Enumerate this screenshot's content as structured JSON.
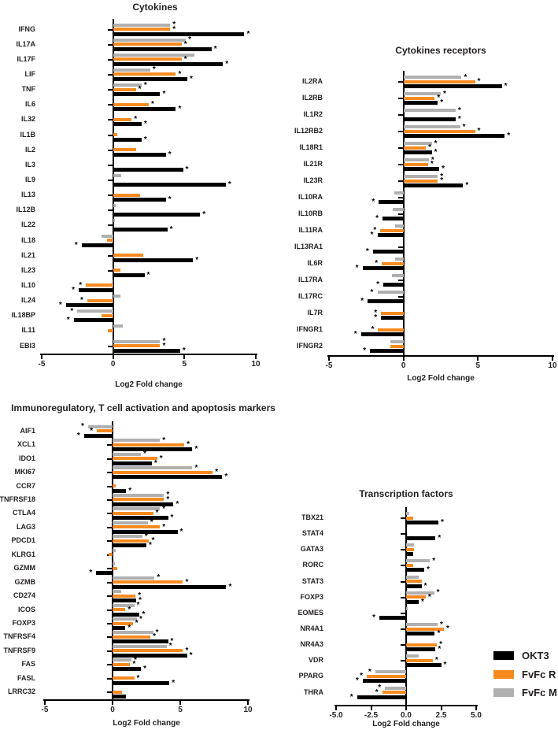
{
  "figure": {
    "background": "#ffffff",
    "significance_marker": "*",
    "legend": {
      "items": [
        {
          "label": "OKT3",
          "color": "#000000"
        },
        {
          "label": "FvFc R",
          "color": "#F68A1E"
        },
        {
          "label": "FvFc M",
          "color": "#B0B0B0"
        }
      ]
    }
  },
  "chart_data": [
    {
      "type": "bar",
      "orientation": "horizontal",
      "title": "Cytokines",
      "xlabel": "Log2 Fold change",
      "xlim": [
        -5,
        10
      ],
      "xticks": [
        "-5",
        "0",
        "5",
        "10"
      ],
      "xtick_values": [
        -5,
        0,
        5,
        10
      ],
      "grid": false,
      "categories": [
        "IFNG",
        "IL17A",
        "IL17F",
        "LIF",
        "TNF",
        "IL6",
        "IL32",
        "IL1B",
        "IL2",
        "IL3",
        "IL9",
        "IL13",
        "IL12B",
        "IL22",
        "IL18",
        "IL21",
        "IL23",
        "IL10",
        "IL24",
        "IL18BP",
        "IL11",
        "EBI3"
      ],
      "series": [
        {
          "name": "FvFc M",
          "color": "#B0B0B0",
          "values": [
            4.0,
            5.1,
            5.7,
            2.6,
            2.0,
            null,
            null,
            null,
            null,
            null,
            0.55,
            null,
            0.2,
            0.15,
            -0.8,
            null,
            null,
            -0.1,
            0.5,
            -2.5,
            0.7,
            3.3
          ],
          "stars": [
            1,
            1,
            0,
            1,
            1,
            0,
            0,
            0,
            0,
            0,
            0,
            0,
            0,
            0,
            0,
            0,
            0,
            0,
            0,
            1,
            0,
            1
          ]
        },
        {
          "name": "FvFc R",
          "color": "#F68A1E",
          "values": [
            4.0,
            4.8,
            4.8,
            4.4,
            1.6,
            2.5,
            1.3,
            0.3,
            1.6,
            null,
            null,
            1.9,
            null,
            null,
            -0.45,
            2.1,
            0.5,
            -1.9,
            -1.8,
            -0.8,
            -0.35,
            3.3
          ],
          "stars": [
            1,
            1,
            1,
            1,
            1,
            1,
            1,
            0,
            0,
            0,
            0,
            0,
            0,
            0,
            0,
            0,
            0,
            1,
            1,
            0,
            0,
            1
          ]
        },
        {
          "name": "OKT3",
          "color": "#000000",
          "values": [
            9.2,
            6.9,
            7.7,
            5.2,
            3.3,
            4.4,
            2.0,
            2.0,
            3.7,
            4.9,
            7.9,
            3.7,
            6.1,
            3.8,
            -2.2,
            5.6,
            2.2,
            -2.4,
            -3.3,
            -2.75,
            null,
            4.7
          ],
          "stars": [
            1,
            1,
            1,
            1,
            1,
            1,
            1,
            1,
            1,
            1,
            1,
            1,
            1,
            1,
            1,
            1,
            1,
            1,
            1,
            1,
            0,
            1
          ]
        }
      ]
    },
    {
      "type": "bar",
      "orientation": "horizontal",
      "title": "Cytokines receptors",
      "xlabel": "Log2 Fold change",
      "xlim": [
        -5,
        10
      ],
      "xticks": [
        "-5",
        "0",
        "5",
        "10"
      ],
      "xtick_values": [
        -5,
        0,
        5,
        10
      ],
      "grid": false,
      "categories": [
        "IL2RA",
        "IL2RB",
        "IL1R2",
        "IL12RB2",
        "IL18R1",
        "IL21R",
        "IL23R",
        "IL10RA",
        "IL10RB",
        "IL11RA",
        "IL13RA1",
        "IL6R",
        "IL17RA",
        "IL17RC",
        "IL7R",
        "IFNGR1",
        "IFNGR2"
      ],
      "series": [
        {
          "name": "FvFc M",
          "color": "#B0B0B0",
          "values": [
            3.9,
            2.5,
            3.5,
            3.8,
            1.9,
            1.7,
            2.3,
            -0.6,
            -0.7,
            -0.55,
            null,
            -0.55,
            -0.75,
            -1.75,
            null,
            null,
            -0.9
          ],
          "stars": [
            1,
            1,
            1,
            1,
            1,
            1,
            1,
            0,
            0,
            0,
            0,
            0,
            0,
            1,
            0,
            0,
            0
          ]
        },
        {
          "name": "FvFc R",
          "color": "#F68A1E",
          "values": [
            4.8,
            2.1,
            null,
            4.8,
            1.5,
            1.65,
            2.3,
            null,
            null,
            -1.55,
            null,
            -1.45,
            null,
            null,
            -1.5,
            -1.7,
            -0.9
          ],
          "stars": [
            1,
            1,
            0,
            1,
            1,
            1,
            1,
            0,
            0,
            1,
            0,
            1,
            0,
            0,
            1,
            1,
            0
          ]
        },
        {
          "name": "OKT3",
          "color": "#000000",
          "values": [
            6.6,
            2.3,
            3.5,
            6.8,
            1.9,
            2.4,
            4.0,
            -1.65,
            -1.4,
            -1.75,
            -2.05,
            -2.75,
            -1.35,
            -2.4,
            -1.5,
            -2.85,
            -2.25
          ],
          "stars": [
            1,
            1,
            1,
            1,
            1,
            1,
            1,
            1,
            1,
            1,
            1,
            1,
            1,
            1,
            1,
            1,
            1
          ]
        }
      ]
    },
    {
      "type": "bar",
      "orientation": "horizontal",
      "title": "Immunoregulatory, T cell activation and apoptosis markers",
      "xlabel": "Log2 Fold change",
      "xlim": [
        -5,
        10
      ],
      "xticks": [
        "-5",
        "0",
        "5",
        "10"
      ],
      "xtick_values": [
        -5,
        0,
        5,
        10
      ],
      "grid": false,
      "categories": [
        "AIF1",
        "XCL1",
        "IDO1",
        "MKI67",
        "CCR7",
        "TNFRSF18",
        "CTLA4",
        "LAG3",
        "PDCD1",
        "KLRG1",
        "GZMM",
        "GZMB",
        "CD274",
        "ICOS",
        "FOXP3",
        "TNFRSF4",
        "TNFRSF9",
        "FAS",
        "FASL",
        "LRRC32"
      ],
      "series": [
        {
          "name": "FvFc M",
          "color": "#B0B0B0",
          "values": [
            -1.8,
            3.5,
            2.1,
            5.9,
            null,
            3.8,
            3.5,
            2.6,
            2.2,
            0.25,
            0.2,
            3.1,
            0.65,
            1.6,
            1.8,
            3.0,
            4.0,
            1.4,
            null,
            null
          ],
          "stars": [
            1,
            1,
            1,
            1,
            0,
            1,
            1,
            1,
            1,
            0,
            0,
            1,
            0,
            1,
            1,
            1,
            1,
            1,
            0,
            0
          ]
        },
        {
          "name": "FvFc R",
          "color": "#F68A1E",
          "values": [
            -1.15,
            5.3,
            3.3,
            7.4,
            0.25,
            3.8,
            3.0,
            3.5,
            2.7,
            -0.3,
            0.35,
            5.2,
            1.7,
            0.95,
            1.5,
            2.8,
            5.2,
            1.3,
            1.6,
            0.7
          ],
          "stars": [
            1,
            1,
            1,
            1,
            0,
            1,
            1,
            1,
            1,
            0,
            0,
            1,
            1,
            1,
            1,
            1,
            1,
            1,
            1,
            0
          ]
        },
        {
          "name": "OKT3",
          "color": "#000000",
          "values": [
            -2.1,
            5.9,
            2.9,
            8.1,
            1.0,
            4.5,
            4.1,
            4.8,
            2.5,
            null,
            -1.2,
            8.4,
            1.75,
            2.0,
            0.95,
            4.1,
            5.5,
            2.1,
            4.2,
            1.0
          ],
          "stars": [
            1,
            1,
            1,
            1,
            1,
            1,
            1,
            1,
            1,
            0,
            1,
            1,
            1,
            1,
            1,
            1,
            1,
            1,
            1,
            0
          ]
        }
      ]
    },
    {
      "type": "bar",
      "orientation": "horizontal",
      "title": "Transcription factors",
      "xlabel": "Log2 Fold change",
      "xlim": [
        -5,
        5
      ],
      "xticks": [
        "-5.0",
        "-2.5",
        "0.0",
        "2.5",
        "5.0"
      ],
      "xtick_values": [
        -5,
        -2.5,
        0,
        2.5,
        5
      ],
      "grid": false,
      "categories": [
        "TBX21",
        "STAT4",
        "GATA3",
        "RORC",
        "STAT3",
        "FOXP3",
        "EOMES",
        "NR4A1",
        "NR4A3",
        "VDR",
        "PPARG",
        "THRA"
      ],
      "series": [
        {
          "name": "FvFc M",
          "color": "#B0B0B0",
          "values": [
            0.2,
            null,
            0.55,
            1.7,
            0.9,
            2.0,
            0.1,
            2.25,
            null,
            0.9,
            -2.2,
            -1.5
          ],
          "stars": [
            0,
            0,
            0,
            1,
            0,
            1,
            0,
            1,
            0,
            0,
            1,
            1
          ]
        },
        {
          "name": "FvFc R",
          "color": "#F68A1E",
          "values": [
            0.5,
            null,
            0.55,
            0.5,
            1.1,
            1.4,
            null,
            2.7,
            2.2,
            1.9,
            -2.8,
            -1.7
          ],
          "stars": [
            0,
            0,
            0,
            0,
            0,
            1,
            0,
            1,
            1,
            1,
            1,
            1
          ]
        },
        {
          "name": "OKT3",
          "color": "#000000",
          "values": [
            2.3,
            2.1,
            0.5,
            1.3,
            1.1,
            0.9,
            -1.9,
            2.05,
            2.1,
            2.5,
            -3.1,
            -3.5
          ],
          "stars": [
            1,
            1,
            0,
            1,
            1,
            1,
            1,
            1,
            1,
            1,
            1,
            1
          ]
        }
      ]
    }
  ]
}
